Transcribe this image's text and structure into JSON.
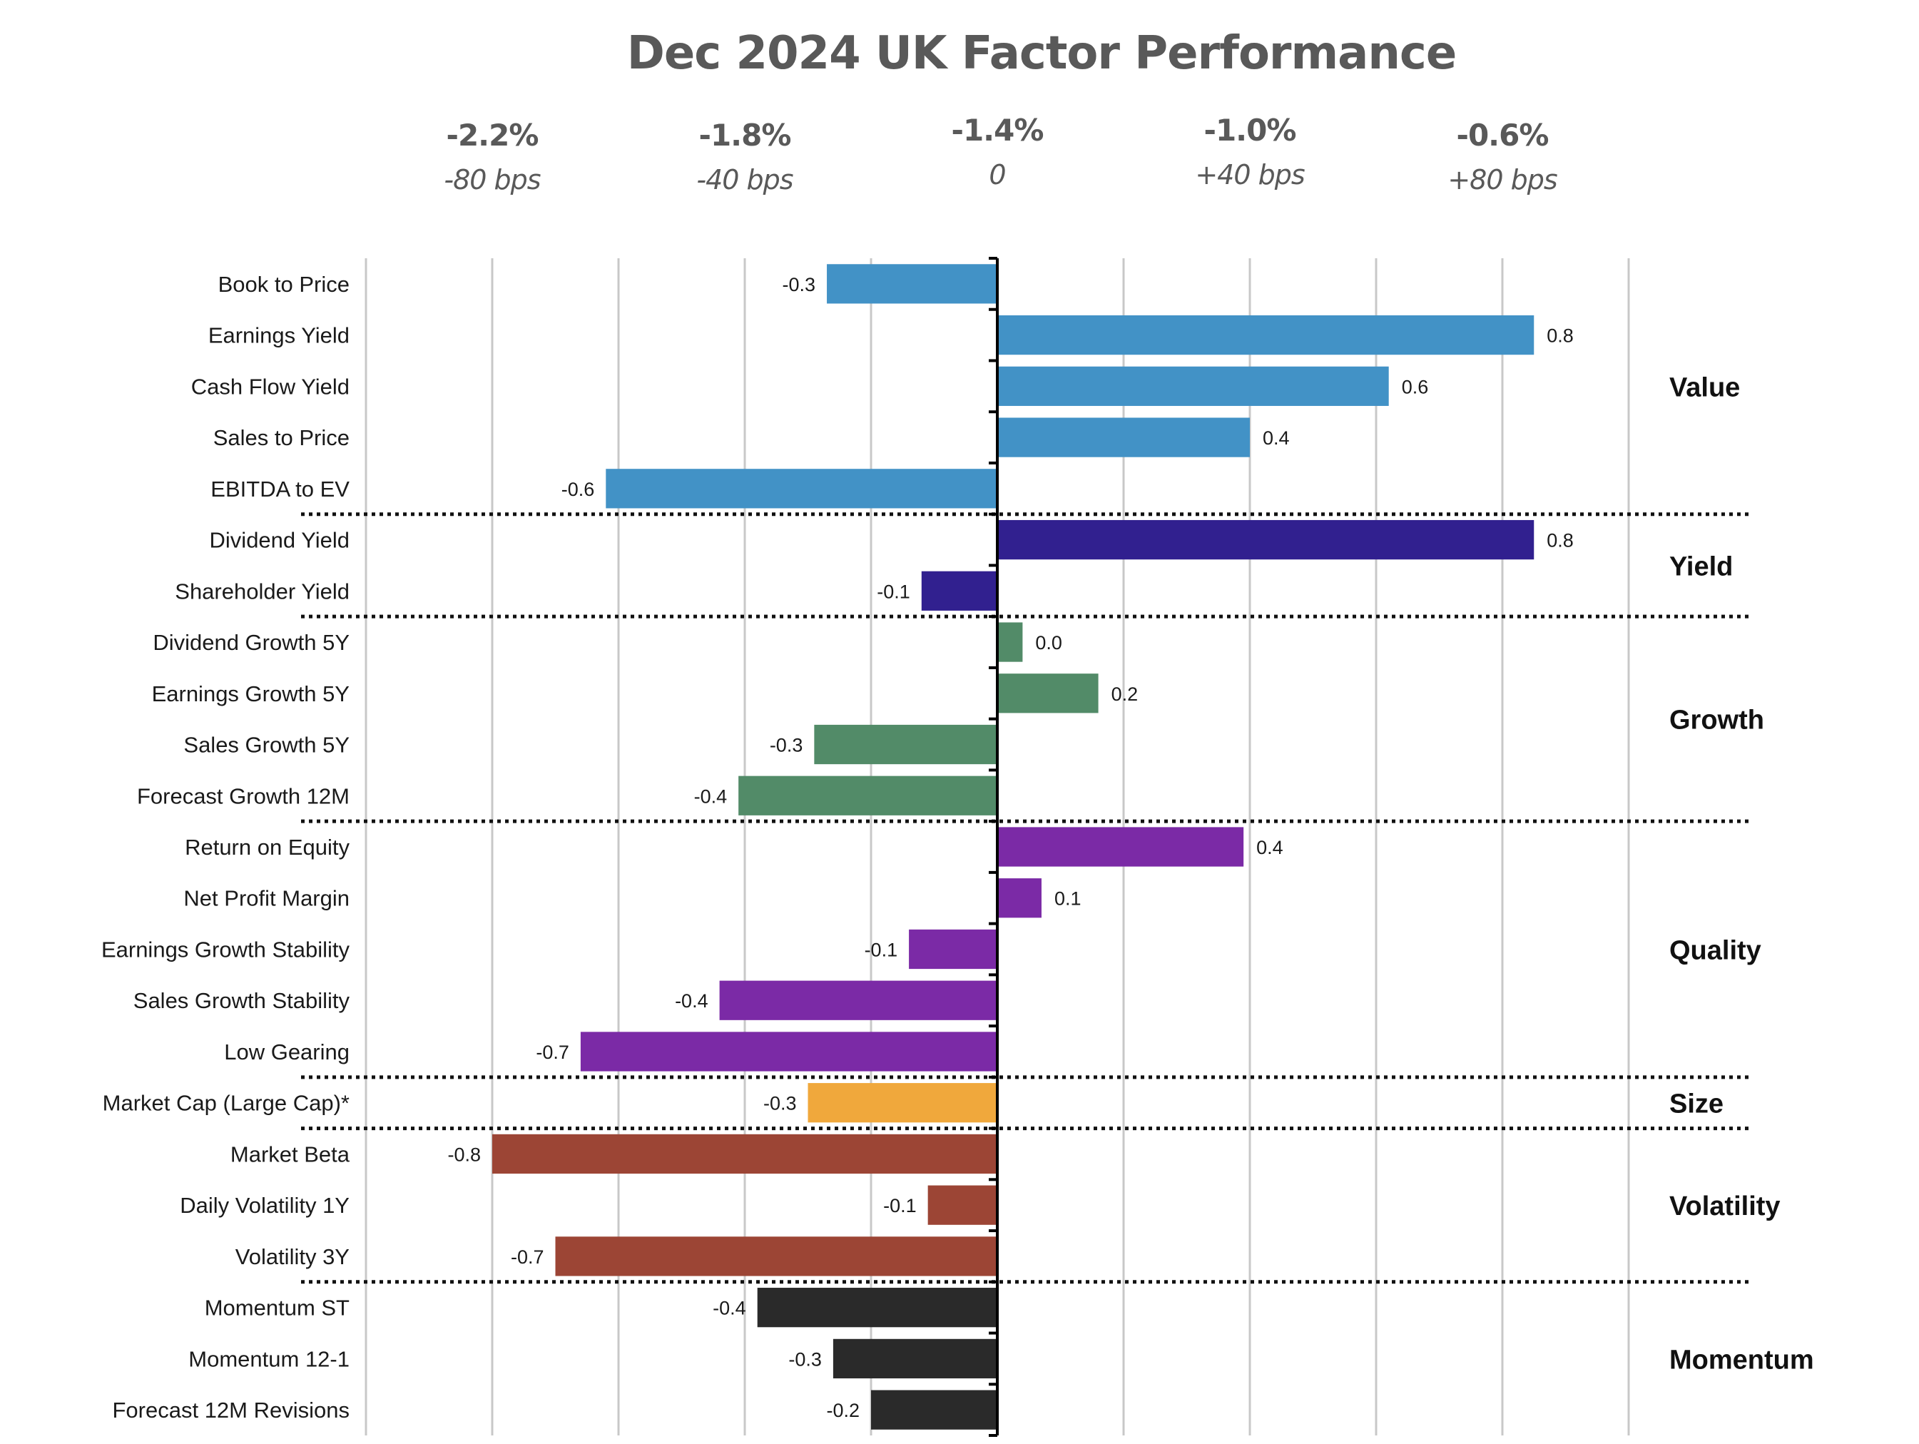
{
  "chart_data": {
    "type": "bar",
    "orientation": "horizontal",
    "title": "Dec 2024 UK Factor Performance",
    "xlabel": "",
    "ylabel": "",
    "value_unit": "%",
    "xlim": [
      -1.0,
      1.0
    ],
    "grid": true,
    "grid_step": 0.2,
    "top_scale": [
      {
        "value": -0.8,
        "pct_label": "-2.2%",
        "bps_label": "-80 bps"
      },
      {
        "value": -0.4,
        "pct_label": "-1.8%",
        "bps_label": "-40 bps"
      },
      {
        "value": 0.0,
        "pct_label": "-1.4%",
        "bps_label": "0"
      },
      {
        "value": 0.4,
        "pct_label": "-1.0%",
        "bps_label": "+40 bps"
      },
      {
        "value": 0.8,
        "pct_label": "-0.6%",
        "bps_label": "+80 bps"
      }
    ],
    "groups": [
      {
        "name": "Value",
        "color": "#4292C6",
        "factors": [
          {
            "label": "Book to Price",
            "value": -0.27,
            "display": "-0.3"
          },
          {
            "label": "Earnings Yield",
            "value": 0.85,
            "display": "0.8"
          },
          {
            "label": "Cash Flow Yield",
            "value": 0.62,
            "display": "0.6"
          },
          {
            "label": "Sales to Price",
            "value": 0.4,
            "display": "0.4"
          },
          {
            "label": "EBITDA to EV",
            "value": -0.62,
            "display": "-0.6"
          }
        ]
      },
      {
        "name": "Yield",
        "color": "#31208F",
        "factors": [
          {
            "label": "Dividend Yield",
            "value": 0.85,
            "display": "0.8"
          },
          {
            "label": "Shareholder Yield",
            "value": -0.12,
            "display": "-0.1"
          }
        ]
      },
      {
        "name": "Growth",
        "color": "#528B68",
        "factors": [
          {
            "label": "Dividend Growth 5Y",
            "value": 0.04,
            "display": "0.0"
          },
          {
            "label": "Earnings Growth 5Y",
            "value": 0.16,
            "display": "0.2"
          },
          {
            "label": "Sales Growth 5Y",
            "value": -0.29,
            "display": "-0.3"
          },
          {
            "label": "Forecast Growth 12M",
            "value": -0.41,
            "display": "-0.4"
          }
        ]
      },
      {
        "name": "Quality",
        "color": "#7B2AA6",
        "factors": [
          {
            "label": "Return on Equity",
            "value": 0.39,
            "display": "0.4"
          },
          {
            "label": "Net Profit Margin",
            "value": 0.07,
            "display": "0.1"
          },
          {
            "label": "Earnings Growth Stability",
            "value": -0.14,
            "display": "-0.1"
          },
          {
            "label": "Sales Growth Stability",
            "value": -0.44,
            "display": "-0.4"
          },
          {
            "label": "Low Gearing",
            "value": -0.66,
            "display": "-0.7"
          }
        ]
      },
      {
        "name": "Size",
        "color": "#F0A83C",
        "factors": [
          {
            "label": "Market Cap (Large Cap)*",
            "value": -0.3,
            "display": "-0.3"
          }
        ]
      },
      {
        "name": "Volatility",
        "color": "#9C4535",
        "factors": [
          {
            "label": "Market Beta",
            "value": -0.8,
            "display": "-0.8"
          },
          {
            "label": "Daily Volatility 1Y",
            "value": -0.11,
            "display": "-0.1"
          },
          {
            "label": "Volatility 3Y",
            "value": -0.7,
            "display": "-0.7"
          }
        ]
      },
      {
        "name": "Momentum",
        "color": "#2A2A2A",
        "factors": [
          {
            "label": "Momentum ST",
            "value": -0.38,
            "display": "-0.4"
          },
          {
            "label": "Momentum 12-1",
            "value": -0.26,
            "display": "-0.3"
          },
          {
            "label": "Forecast 12M Revisions",
            "value": -0.2,
            "display": "-0.2"
          }
        ]
      }
    ]
  }
}
